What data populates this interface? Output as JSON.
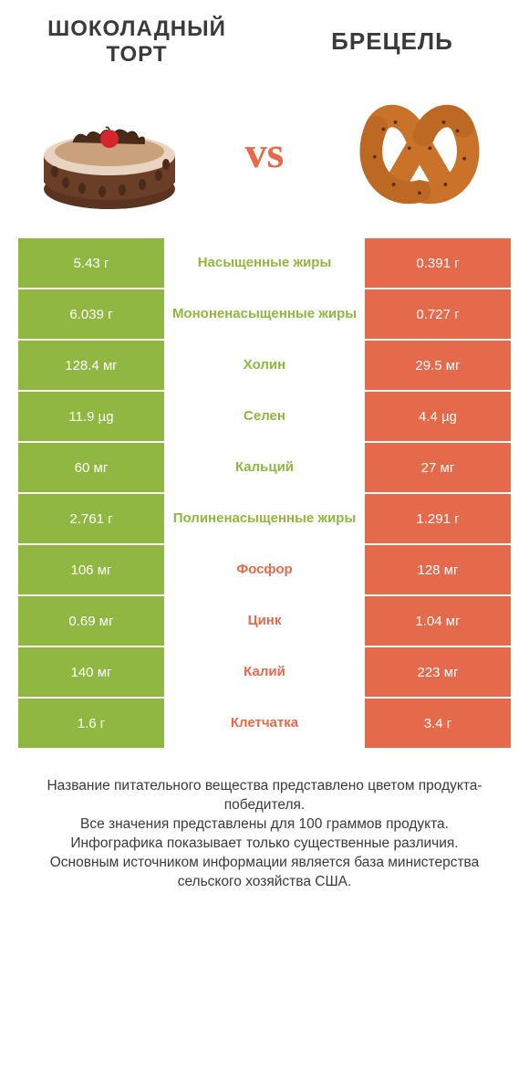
{
  "colors": {
    "green": "#8fb741",
    "orange": "#e5694b",
    "green_text": "#8fb741",
    "orange_text": "#e5694b",
    "white": "#ffffff",
    "dark_text": "#3a3a3a"
  },
  "header": {
    "left_title_line1": "ШОКОЛАДНЫЙ",
    "left_title_line2": "ТОРТ",
    "right_title": "БРЕЦЕЛЬ",
    "left_fontsize": 24,
    "right_fontsize": 26
  },
  "vs": {
    "label": "vs"
  },
  "rows": [
    {
      "left": "5.43 г",
      "name": "Насыщенные жиры",
      "right": "0.391 г",
      "winner": "left"
    },
    {
      "left": "6.039 г",
      "name": "Мононенасыщенные жиры",
      "right": "0.727 г",
      "winner": "left"
    },
    {
      "left": "128.4 мг",
      "name": "Холин",
      "right": "29.5 мг",
      "winner": "left"
    },
    {
      "left": "11.9 µg",
      "name": "Селен",
      "right": "4.4 µg",
      "winner": "left"
    },
    {
      "left": "60 мг",
      "name": "Кальций",
      "right": "27 мг",
      "winner": "left"
    },
    {
      "left": "2.761 г",
      "name": "Полиненасыщенные жиры",
      "right": "1.291 г",
      "winner": "left"
    },
    {
      "left": "106 мг",
      "name": "Фосфор",
      "right": "128 мг",
      "winner": "right"
    },
    {
      "left": "0.69 мг",
      "name": "Цинк",
      "right": "1.04 мг",
      "winner": "right"
    },
    {
      "left": "140 мг",
      "name": "Калий",
      "right": "223 мг",
      "winner": "right"
    },
    {
      "left": "1.6 г",
      "name": "Клетчатка",
      "right": "3.4 г",
      "winner": "right"
    }
  ],
  "footer": {
    "line1": "Название питательного вещества представлено цветом продукта-победителя.",
    "line2": "Все значения представлены для 100 граммов продукта.",
    "line3": "Инфографика показывает только существенные различия.",
    "line4": "Основным источником информации является база министерства сельского хозяйства США."
  }
}
